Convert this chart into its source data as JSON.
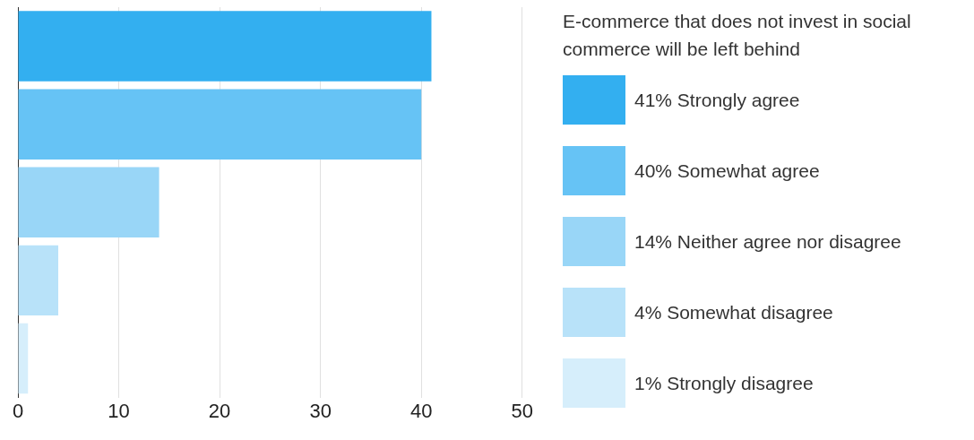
{
  "chart_data": {
    "type": "bar",
    "orientation": "horizontal",
    "legend_title": "E-commerce that does not invest in social commerce will be left behind",
    "categories": [
      null,
      null,
      null,
      null,
      null
    ],
    "series": [
      {
        "name": "41% Strongly agree",
        "color": "#33aff0",
        "values": [
          41,
          null,
          null,
          null,
          null
        ]
      },
      {
        "name": "40% Somewhat agree",
        "color": "#66c3f5",
        "values": [
          null,
          40,
          null,
          null,
          null
        ]
      },
      {
        "name": "14% Neither agree nor disagree",
        "color": "#99d6f7",
        "values": [
          null,
          null,
          14,
          null,
          null
        ]
      },
      {
        "name": "4% Somewhat disagree",
        "color": "#b8e2f9",
        "values": [
          null,
          null,
          null,
          4,
          null
        ]
      },
      {
        "name": "1% Strongly disagree",
        "color": "#d6eefb",
        "values": [
          null,
          null,
          null,
          null,
          1
        ]
      }
    ],
    "xlim": [
      0,
      50
    ],
    "xticks": [
      0,
      10,
      20,
      30,
      40,
      50
    ],
    "grid": "x",
    "legend": "right",
    "tick_labels": "x"
  }
}
